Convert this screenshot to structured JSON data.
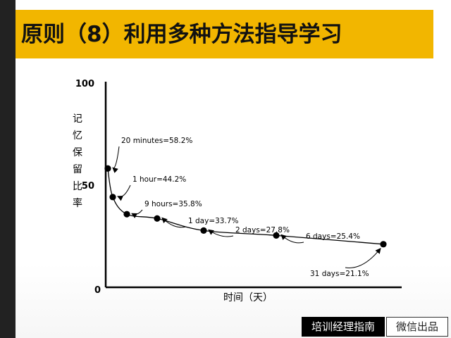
{
  "slide": {
    "title": "原则（8）利用多种方法指导学习"
  },
  "footer": {
    "badge": "培训经理指南",
    "source": "微信出品"
  },
  "colors": {
    "accent": "#f2b600",
    "rail": "#222222",
    "ink": "#000000"
  },
  "chart_data": {
    "type": "line",
    "title": "",
    "xlabel": "时间（天）",
    "ylabel": "记忆保留比率",
    "ylim": [
      0,
      100
    ],
    "y_ticks": [
      "0",
      "50",
      "100"
    ],
    "grid": false,
    "series": [
      {
        "points": [
          {
            "label": "20 minutes=58.2%",
            "y": 58.2
          },
          {
            "label": "1 hour=44.2%",
            "y": 44.2
          },
          {
            "label": "9 hours=35.8%",
            "y": 35.8
          },
          {
            "label": "1 day=33.7%",
            "y": 33.7
          },
          {
            "label": "2 days=27.8%",
            "y": 27.8
          },
          {
            "label": "6 days=25.4%",
            "y": 25.4
          },
          {
            "label": "31 days=21.1%",
            "y": 21.1
          }
        ]
      }
    ]
  }
}
